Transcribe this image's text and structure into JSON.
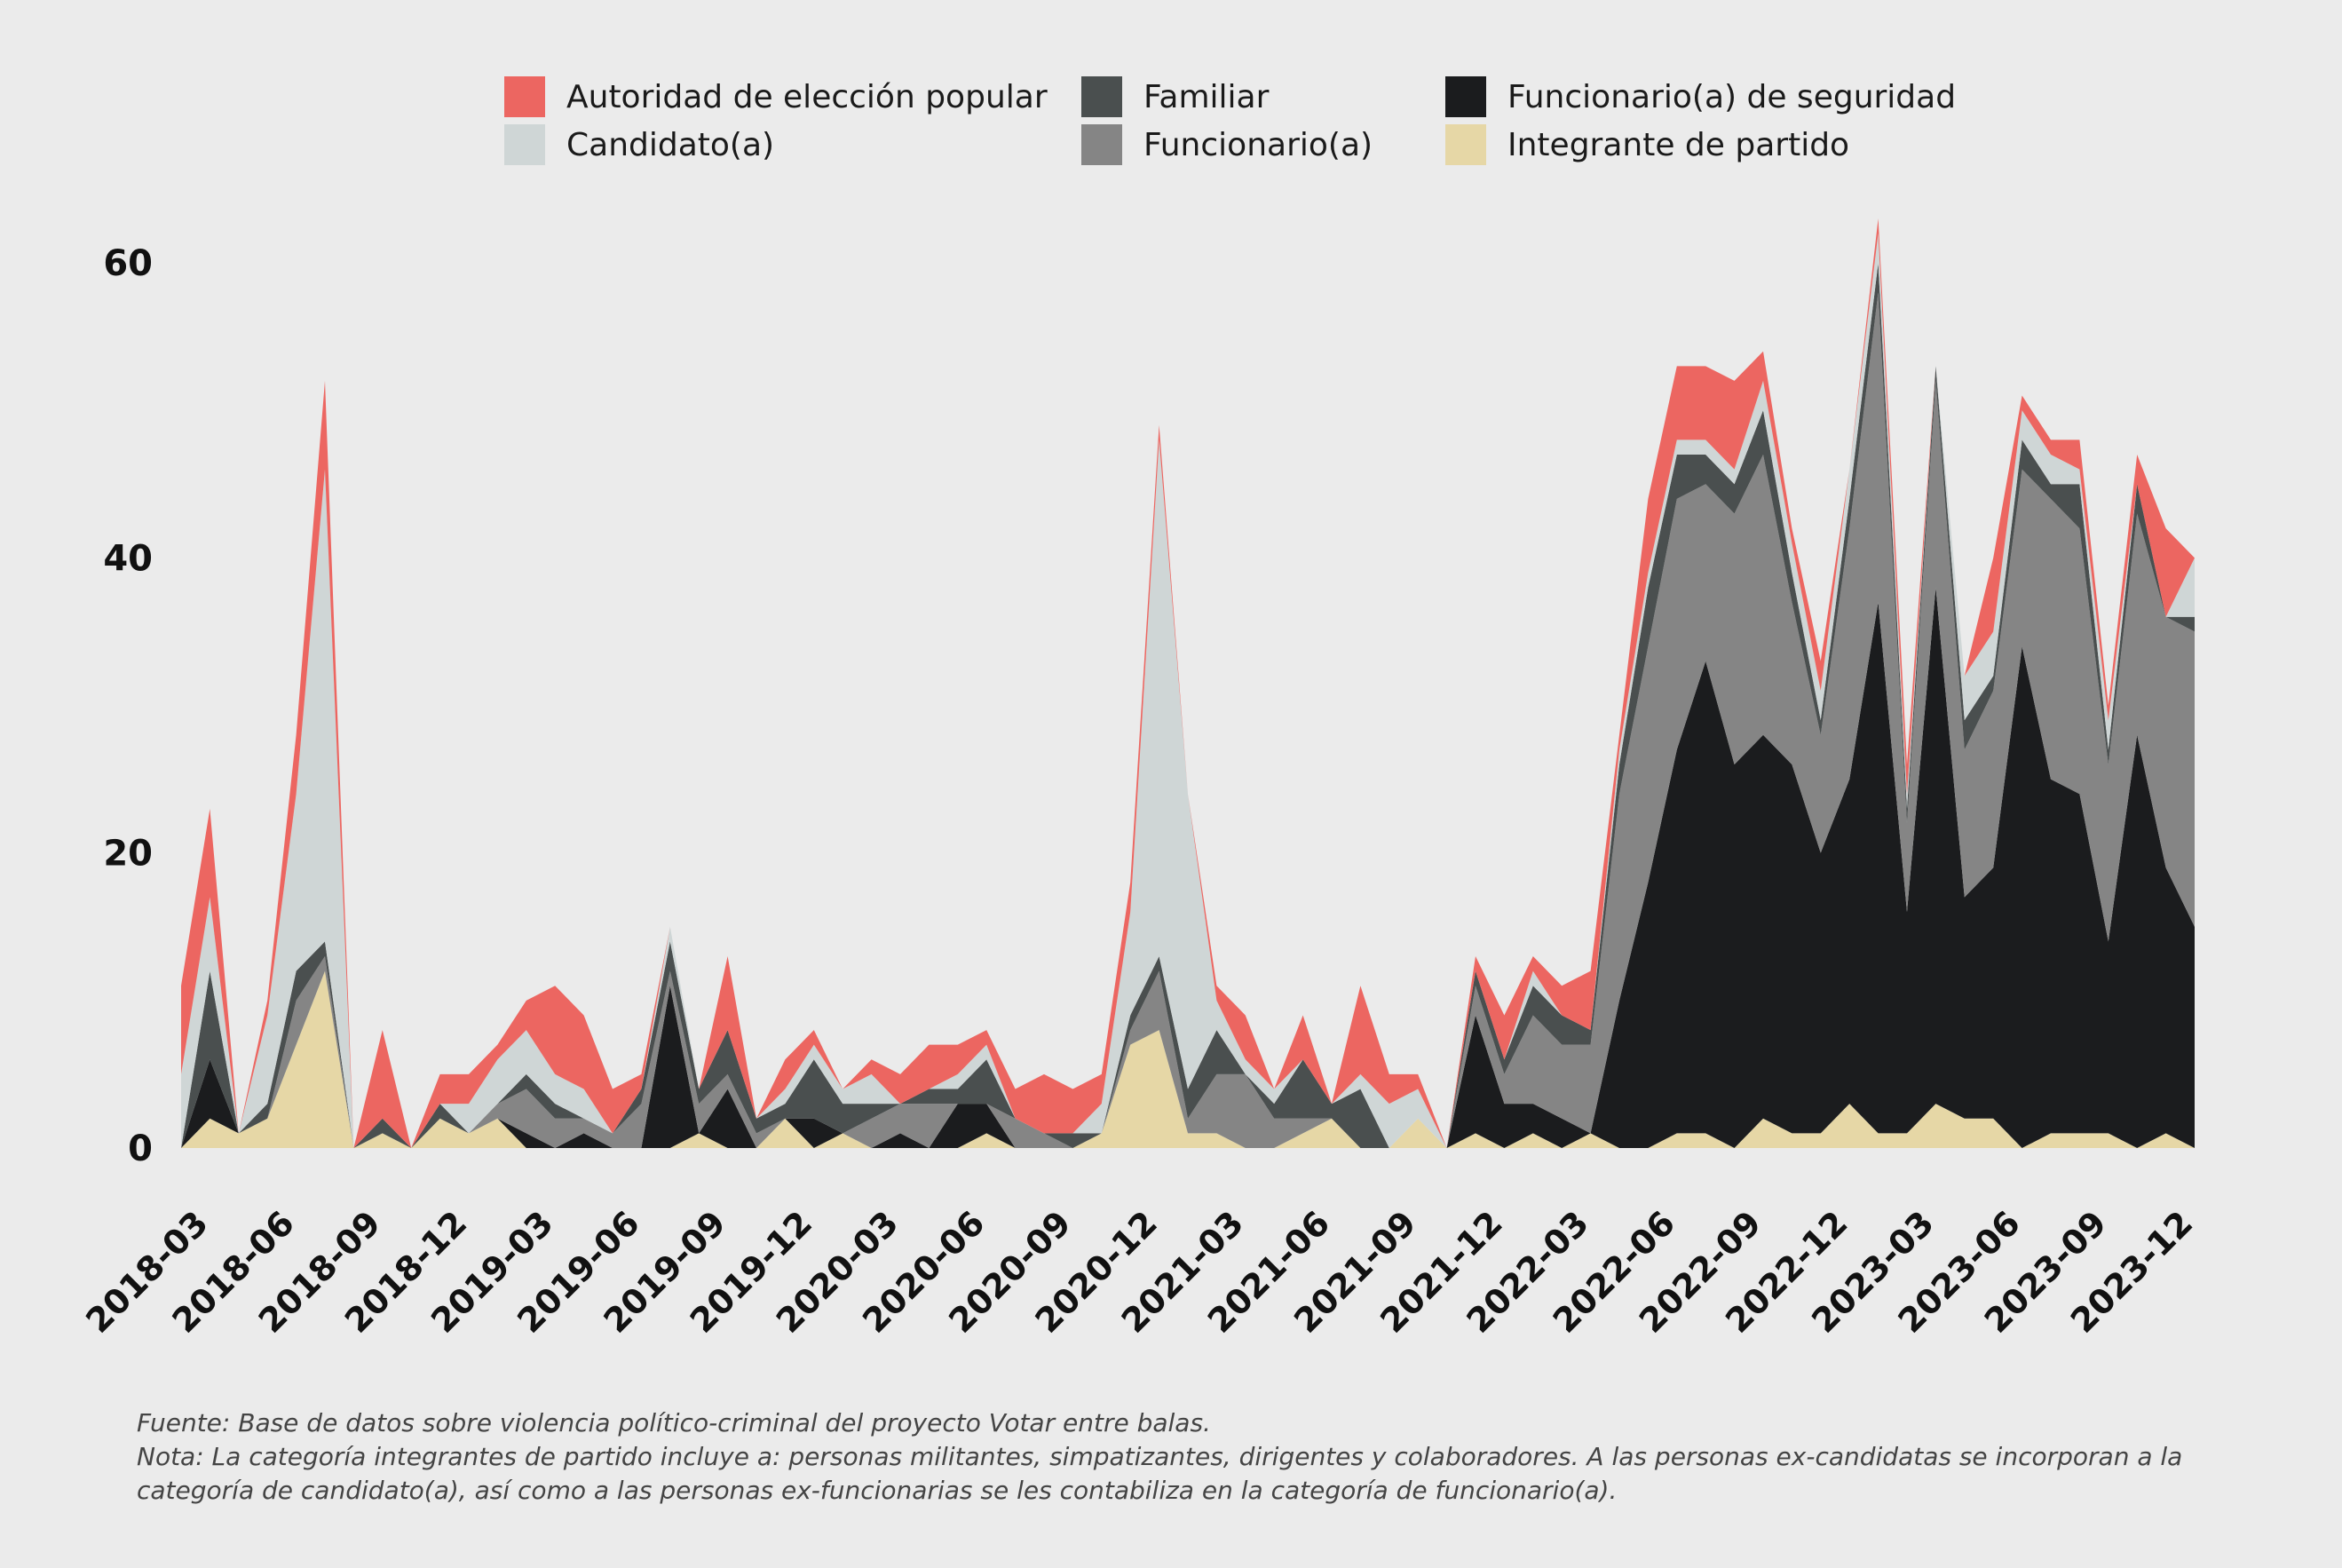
{
  "chart_data": {
    "type": "area",
    "stacked": true,
    "x": [
      "2018-02",
      "2018-03",
      "2018-04",
      "2018-05",
      "2018-06",
      "2018-07",
      "2018-08",
      "2018-09",
      "2018-10",
      "2018-11",
      "2018-12",
      "2019-01",
      "2019-02",
      "2019-03",
      "2019-04",
      "2019-05",
      "2019-06",
      "2019-07",
      "2019-08",
      "2019-09",
      "2019-10",
      "2019-11",
      "2019-12",
      "2020-01",
      "2020-02",
      "2020-03",
      "2020-04",
      "2020-05",
      "2020-06",
      "2020-07",
      "2020-08",
      "2020-09",
      "2020-10",
      "2020-11",
      "2020-12",
      "2021-01",
      "2021-02",
      "2021-03",
      "2021-04",
      "2021-05",
      "2021-06",
      "2021-07",
      "2021-08",
      "2021-09",
      "2021-10",
      "2021-11",
      "2021-12",
      "2022-01",
      "2022-02",
      "2022-03",
      "2022-04",
      "2022-05",
      "2022-06",
      "2022-07",
      "2022-08",
      "2022-09",
      "2022-10",
      "2022-11",
      "2022-12",
      "2023-01",
      "2023-02",
      "2023-03",
      "2023-04",
      "2023-05",
      "2023-06",
      "2023-07",
      "2023-08",
      "2023-09",
      "2023-10",
      "2023-11",
      "2023-12"
    ],
    "xticks": [
      "2018-03",
      "2018-06",
      "2018-09",
      "2018-12",
      "2019-03",
      "2019-06",
      "2019-09",
      "2019-12",
      "2020-03",
      "2020-06",
      "2020-09",
      "2020-12",
      "2021-03",
      "2021-06",
      "2021-09",
      "2021-12",
      "2022-03",
      "2022-06",
      "2022-09",
      "2022-12",
      "2023-03",
      "2023-06",
      "2023-09",
      "2023-12"
    ],
    "yticks": [
      0,
      20,
      40,
      60
    ],
    "ylim": [
      0,
      60
    ],
    "legend_position": "top",
    "grid": false,
    "series": [
      {
        "name": "Integrante de partido",
        "color": "#e6d7a6",
        "values": [
          0,
          2,
          1,
          2,
          7,
          12,
          0,
          1,
          0,
          2,
          1,
          2,
          0,
          0,
          0,
          0,
          0,
          0,
          1,
          0,
          0,
          2,
          0,
          1,
          0,
          0,
          0,
          0,
          1,
          0,
          0,
          0,
          1,
          7,
          8,
          1,
          1,
          0,
          0,
          1,
          2,
          0,
          0,
          2,
          0,
          1,
          0,
          1,
          0,
          1,
          0,
          0,
          1,
          1,
          0,
          2,
          1,
          1,
          3,
          1,
          1,
          3,
          2,
          2,
          0,
          1,
          1,
          1,
          0,
          1,
          0
        ]
      },
      {
        "name": "Funcionario(a) de seguridad",
        "color": "#1b1c1e",
        "values": [
          0,
          4,
          0,
          0,
          0,
          0,
          0,
          0,
          0,
          0,
          0,
          0,
          1,
          0,
          1,
          0,
          0,
          11,
          0,
          4,
          0,
          0,
          2,
          0,
          0,
          1,
          0,
          3,
          2,
          0,
          0,
          0,
          0,
          0,
          0,
          0,
          0,
          0,
          0,
          0,
          0,
          0,
          0,
          0,
          0,
          8,
          3,
          2,
          2,
          0,
          10,
          18,
          26,
          32,
          26,
          26,
          25,
          19,
          22,
          36,
          15,
          35,
          15,
          17,
          34,
          24,
          23,
          13,
          28,
          18,
          15
        ]
      },
      {
        "name": "Funcionario(a)",
        "color": "#858585",
        "values": [
          0,
          0,
          0,
          0,
          3,
          1,
          0,
          0,
          0,
          0,
          0,
          1,
          3,
          2,
          1,
          1,
          3,
          1,
          2,
          1,
          1,
          0,
          0,
          0,
          2,
          2,
          3,
          0,
          0,
          2,
          1,
          0,
          0,
          1,
          4,
          1,
          4,
          5,
          2,
          1,
          0,
          0,
          0,
          0,
          0,
          2,
          2,
          6,
          5,
          6,
          14,
          16,
          17,
          12,
          17,
          19,
          11,
          8,
          17,
          21,
          6,
          14,
          10,
          12,
          12,
          19,
          18,
          12,
          15,
          17,
          20
        ]
      },
      {
        "name": "Familiar",
        "color": "#4a4f4f",
        "values": [
          0,
          6,
          0,
          1,
          2,
          1,
          0,
          1,
          0,
          1,
          0,
          0,
          1,
          1,
          0,
          0,
          1,
          2,
          1,
          3,
          1,
          1,
          4,
          2,
          1,
          0,
          1,
          1,
          3,
          0,
          0,
          1,
          0,
          1,
          1,
          2,
          3,
          0,
          1,
          4,
          1,
          4,
          0,
          0,
          0,
          1,
          1,
          2,
          2,
          1,
          2,
          4,
          3,
          2,
          2,
          3,
          2,
          1,
          2,
          2,
          1,
          1,
          2,
          1,
          2,
          1,
          3,
          1,
          2,
          0,
          1
        ]
      },
      {
        "name": "Candidato(a)",
        "color": "#cfd6d6",
        "values": [
          5,
          5,
          0,
          6,
          12,
          32,
          0,
          0,
          0,
          0,
          2,
          3,
          3,
          2,
          2,
          0,
          0,
          1,
          0,
          0,
          0,
          1,
          1,
          1,
          2,
          0,
          0,
          1,
          1,
          0,
          0,
          0,
          2,
          7,
          35,
          20,
          2,
          1,
          1,
          0,
          0,
          1,
          3,
          2,
          0,
          0,
          0,
          1,
          0,
          0,
          1,
          1,
          1,
          1,
          1,
          2,
          2,
          2,
          2,
          2,
          1,
          0,
          3,
          3,
          2,
          2,
          1,
          2,
          0,
          0,
          4
        ]
      },
      {
        "name": "Autoridad de elección popular",
        "color": "#ec6661",
        "values": [
          6,
          6,
          0,
          1,
          4,
          6,
          0,
          6,
          0,
          2,
          2,
          1,
          2,
          6,
          5,
          3,
          1,
          0,
          0,
          5,
          0,
          2,
          1,
          0,
          1,
          2,
          3,
          2,
          1,
          2,
          4,
          3,
          2,
          2,
          1,
          0,
          1,
          3,
          0,
          3,
          0,
          6,
          2,
          1,
          0,
          1,
          3,
          1,
          2,
          4,
          1,
          5,
          5,
          5,
          6,
          2,
          1,
          2,
          0,
          1,
          2,
          0,
          0,
          5,
          1,
          1,
          2,
          1,
          2,
          6,
          0
        ]
      }
    ]
  },
  "legend": [
    {
      "label": "Autoridad de elección popular",
      "color": "#ec6661"
    },
    {
      "label": "Familiar",
      "color": "#4a4f4f"
    },
    {
      "label": "Funcionario(a) de seguridad",
      "color": "#1b1c1e"
    },
    {
      "label": "Candidato(a)",
      "color": "#cfd6d6"
    },
    {
      "label": "Funcionario(a)",
      "color": "#858585"
    },
    {
      "label": "Integrante de partido",
      "color": "#e6d7a6"
    }
  ],
  "notes": {
    "source": "Fuente: Base de datos sobre violencia político-criminal del proyecto Votar entre balas.",
    "note": "Nota: La categoría integrantes de partido incluye a: personas militantes, simpatizantes, dirigentes y colaboradores. A las personas ex-candidatas se incorporan a la categoría de candidato(a), así como a las personas ex-funcionarias se les contabiliza en la categoría de funcionario(a)."
  }
}
